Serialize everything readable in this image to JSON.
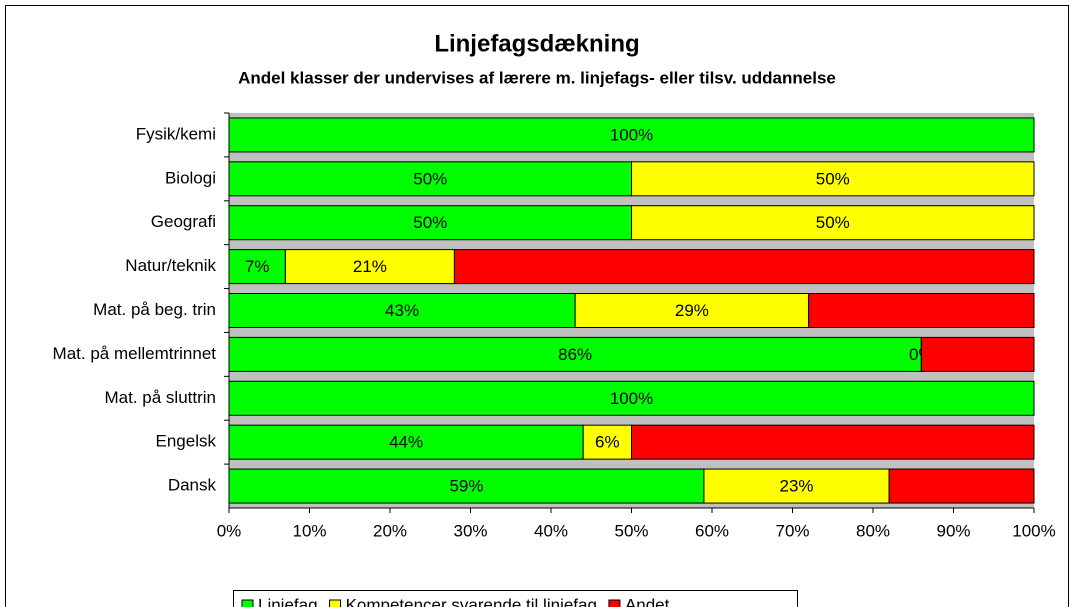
{
  "chart_data": {
    "type": "bar",
    "orientation": "horizontal",
    "stacked": true,
    "title": "Linjefagsdækning",
    "subtitle": "Andel klasser der undervises af lærere m. linjefags- eller tilsv. uddannelse",
    "categories": [
      "Fysik/kemi",
      "Biologi",
      "Geografi",
      "Natur/teknik",
      "Mat. på beg. trin",
      "Mat. på mellemtrinnet",
      "Mat. på sluttrin",
      "Engelsk",
      "Dansk"
    ],
    "series": [
      {
        "name": "Linjefag",
        "color": "#00ff00",
        "values": [
          100,
          50,
          50,
          7,
          43,
          86,
          100,
          44,
          59
        ],
        "value_labels": [
          "100%",
          "50%",
          "50%",
          "7%",
          "43%",
          "86%",
          "100%",
          "44%",
          "59%"
        ]
      },
      {
        "name": "Kompetencer svarende til linjefag",
        "color": "#ffff00",
        "values": [
          0,
          50,
          50,
          21,
          29,
          0,
          0,
          6,
          23
        ],
        "value_labels": [
          null,
          "50%",
          "50%",
          "21%",
          "29%",
          "0%",
          null,
          "6%",
          "23%"
        ]
      },
      {
        "name": "Andet",
        "color": "#ff0000",
        "values": [
          0,
          0,
          0,
          72,
          28,
          14,
          0,
          50,
          18
        ]
      }
    ],
    "xlim": [
      0,
      100
    ],
    "xticks": [
      {
        "value": 0,
        "label": "0%"
      },
      {
        "value": 10,
        "label": "10%"
      },
      {
        "value": 20,
        "label": "20%"
      },
      {
        "value": 30,
        "label": "30%"
      },
      {
        "value": 40,
        "label": "40%"
      },
      {
        "value": 50,
        "label": "50%"
      },
      {
        "value": 60,
        "label": "60%"
      },
      {
        "value": 70,
        "label": "70%"
      },
      {
        "value": 80,
        "label": "80%"
      },
      {
        "value": 90,
        "label": "90%"
      },
      {
        "value": 100,
        "label": "100%"
      }
    ],
    "legend": "bottom"
  }
}
